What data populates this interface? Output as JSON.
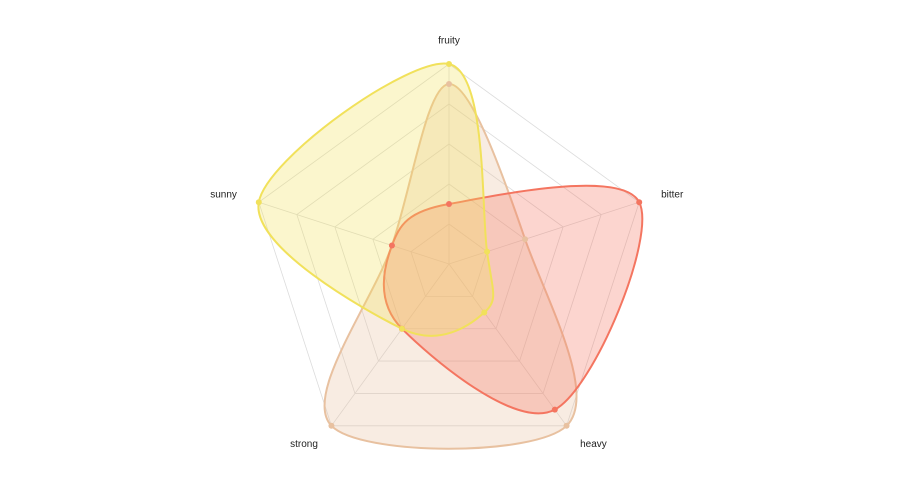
{
  "chart_data": {
    "type": "radar",
    "axes": [
      "fruity",
      "bitter",
      "heavy",
      "strong",
      "sunny"
    ],
    "max": 10,
    "levels": 5,
    "grid": true,
    "smooth": true,
    "series": [
      {
        "color": "#e8c1a0",
        "values": [
          9,
          4,
          10,
          10,
          3
        ]
      },
      {
        "color": "#f47560",
        "values": [
          3,
          10,
          9,
          4,
          3
        ]
      },
      {
        "color": "#f1e15b",
        "values": [
          10,
          2,
          3,
          4,
          10
        ]
      }
    ]
  }
}
